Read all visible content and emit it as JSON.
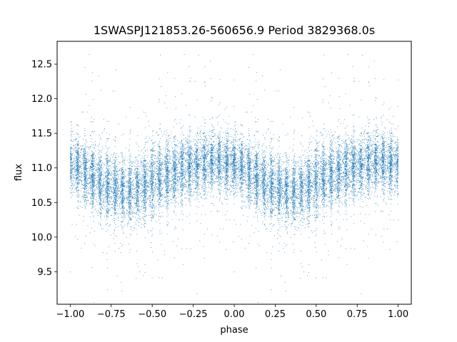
{
  "chart_data": {
    "type": "scatter",
    "title": "1SWASPJ121853.26-560656.9 Period 3829368.0s",
    "xlabel": "phase",
    "ylabel": "flux",
    "xlim": [
      -1.08,
      1.08
    ],
    "ylim": [
      9.03,
      12.83
    ],
    "xticks": [
      -1.0,
      -0.75,
      -0.5,
      -0.25,
      0.0,
      0.25,
      0.5,
      0.75,
      1.0
    ],
    "xtick_labels": [
      "−1.00",
      "−0.75",
      "−0.50",
      "−0.25",
      "0.00",
      "0.25",
      "0.50",
      "0.75",
      "1.00"
    ],
    "yticks": [
      9.5,
      10.0,
      10.5,
      11.0,
      11.5,
      12.0,
      12.5
    ],
    "ytick_labels": [
      "9.5",
      "10.0",
      "10.5",
      "11.0",
      "11.5",
      "12.0",
      "12.5"
    ],
    "grid": false,
    "marker_color": "#1f77b4",
    "series_profile": {
      "phase": [
        0.0,
        0.05,
        0.1,
        0.15,
        0.2,
        0.25,
        0.3,
        0.35,
        0.4,
        0.45,
        0.5,
        0.55,
        0.6,
        0.65,
        0.7,
        0.75,
        0.8,
        0.85,
        0.9,
        0.95
      ],
      "mean_flux": [
        11.05,
        11.0,
        10.93,
        10.85,
        10.78,
        10.7,
        10.68,
        10.66,
        10.7,
        10.75,
        10.8,
        10.85,
        10.9,
        10.95,
        11.0,
        11.02,
        11.05,
        11.08,
        11.1,
        11.08
      ],
      "spread": [
        0.25,
        0.27,
        0.28,
        0.3,
        0.3,
        0.28,
        0.27,
        0.27,
        0.29,
        0.32,
        0.33,
        0.32,
        0.3,
        0.29,
        0.28,
        0.27,
        0.27,
        0.26,
        0.26,
        0.26
      ]
    }
  }
}
